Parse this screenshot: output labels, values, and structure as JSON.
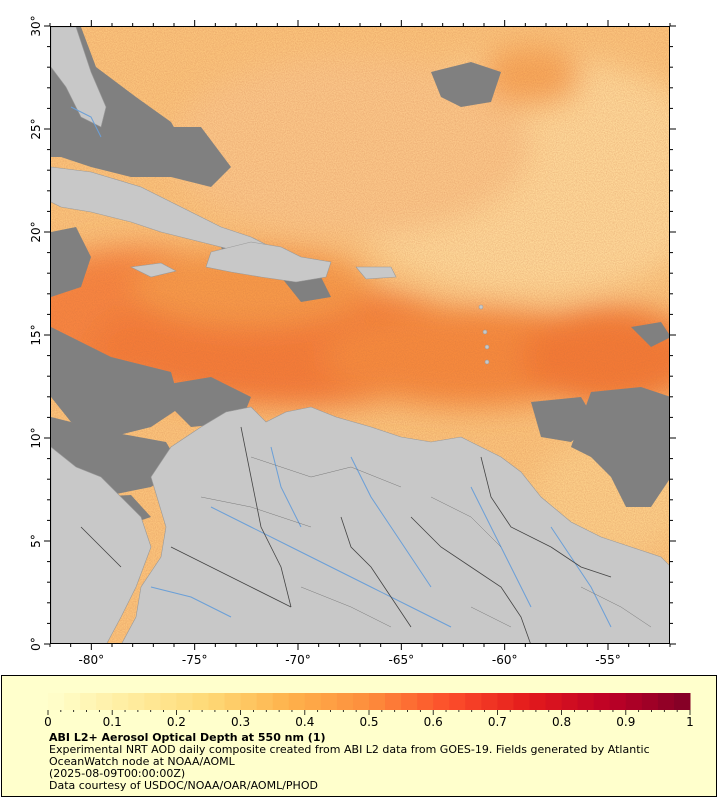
{
  "map": {
    "lon_range": [
      -82,
      -52
    ],
    "lat_range": [
      0,
      30
    ],
    "x_ticks": [
      {
        "value": -80,
        "label": "-80°"
      },
      {
        "value": -75,
        "label": "-75°"
      },
      {
        "value": -70,
        "label": "-70°"
      },
      {
        "value": -65,
        "label": "-65°"
      },
      {
        "value": -60,
        "label": "-60°"
      },
      {
        "value": -55,
        "label": "-55°"
      }
    ],
    "y_ticks": [
      {
        "value": 0,
        "label": "0°"
      },
      {
        "value": 5,
        "label": "5°"
      },
      {
        "value": 10,
        "label": "10°"
      },
      {
        "value": 15,
        "label": "15°"
      },
      {
        "value": 20,
        "label": "20°"
      },
      {
        "value": 25,
        "label": "25°"
      },
      {
        "value": 30,
        "label": "30°"
      }
    ],
    "colors": {
      "land": "#c8c8c8",
      "no_data": "#808080",
      "river": "#6a9fd8",
      "border": "#333333"
    }
  },
  "legend": {
    "title": "ABI L2+ Aerosol Optical Depth at 550 nm (1)",
    "line1": "Experimental NRT AOD daily composite created from ABI L2 data from GOES-19. Fields generated by Atlantic",
    "line2": "OceanWatch node at NOAA/AOML",
    "line3": "(2025-08-09T00:00:00Z)",
    "line4": "Data courtesy of USDOC/NOAA/OAR/AOML/PHOD",
    "colorbar": {
      "min": 0,
      "max": 1,
      "ticks": [
        {
          "value": 0,
          "label": "0"
        },
        {
          "value": 0.1,
          "label": "0.1"
        },
        {
          "value": 0.2,
          "label": "0.2"
        },
        {
          "value": 0.3,
          "label": "0.3"
        },
        {
          "value": 0.4,
          "label": "0.4"
        },
        {
          "value": 0.5,
          "label": "0.5"
        },
        {
          "value": 0.6,
          "label": "0.6"
        },
        {
          "value": 0.7,
          "label": "0.7"
        },
        {
          "value": 0.8,
          "label": "0.8"
        },
        {
          "value": 0.9,
          "label": "0.9"
        },
        {
          "value": 1,
          "label": "1"
        }
      ],
      "color_stops": [
        "#ffffcc",
        "#ffeda0",
        "#fed976",
        "#feb24c",
        "#fd8d3c",
        "#fc4e2a",
        "#e31a1c",
        "#bd0026",
        "#800026"
      ]
    }
  }
}
